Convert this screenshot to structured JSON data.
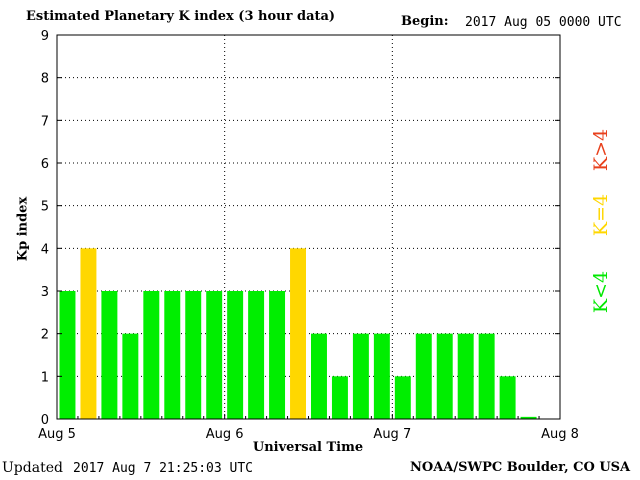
{
  "header": {
    "title": "Estimated Planetary K index (3 hour data)",
    "begin_label": "Begin:",
    "begin_value": "2017 Aug 05 0000 UTC"
  },
  "footer": {
    "updated_label": "Updated",
    "updated_value": "2017 Aug  7 21:25:03 UTC",
    "credit": "NOAA/SWPC Boulder, CO USA"
  },
  "legend": {
    "high": {
      "label": "K>4",
      "color": "#e8401c"
    },
    "equal": {
      "label": "K=4",
      "color": "#ffd700"
    },
    "low": {
      "label": "K<4",
      "color": "#00e800"
    }
  },
  "chart_data": {
    "type": "bar",
    "xlabel": "Universal Time",
    "ylabel": "Kp index",
    "ylim": [
      0,
      9
    ],
    "yticks": [
      "0",
      "1",
      "2",
      "3",
      "4",
      "5",
      "6",
      "7",
      "8",
      "9"
    ],
    "xlim": [
      "2017-08-05 00:00",
      "2017-08-08 00:00"
    ],
    "xticks": [
      "Aug 5",
      "Aug 6",
      "Aug 7",
      "Aug 8"
    ],
    "interval": "3 hour",
    "grid": true,
    "values": [
      3,
      4,
      3,
      2,
      3,
      3,
      3,
      3,
      3,
      3,
      3,
      4,
      2,
      1,
      2,
      2,
      1,
      2,
      2,
      2,
      2,
      1,
      0.05
    ],
    "colors": {
      "below_4": "#00ee00",
      "equal_4": "#ffd700",
      "above_4": "#ff3300"
    }
  }
}
